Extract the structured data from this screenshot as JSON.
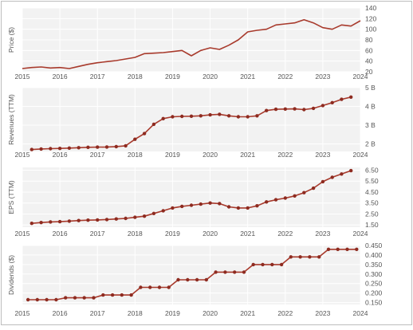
{
  "colors": {
    "line": "#a83a2c",
    "marker": "#8e2b20",
    "panel_bg": "#f2f2f2",
    "grid": "#ffffff",
    "axis_text": "#555555",
    "frame": "#bdbdbd"
  },
  "x_axis": {
    "ticks": [
      "2015",
      "2016",
      "2017",
      "2018",
      "2019",
      "2020",
      "2021",
      "2022",
      "2023",
      "2024"
    ]
  },
  "chart_data": [
    {
      "type": "line",
      "ylabel": "Price ($)",
      "ylim": [
        20,
        140
      ],
      "yticks": [
        "20",
        "40",
        "60",
        "80",
        "100",
        "120",
        "140"
      ],
      "xlim": [
        2015,
        2024
      ],
      "grid": true,
      "series": [
        {
          "x": [
            2015.0,
            2015.25,
            2015.5,
            2015.75,
            2016.0,
            2016.25,
            2016.5,
            2016.75,
            2017.0,
            2017.25,
            2017.5,
            2017.75,
            2018.0,
            2018.25,
            2018.5,
            2018.75,
            2019.0,
            2019.25,
            2019.5,
            2019.75,
            2020.0,
            2020.25,
            2020.5,
            2020.75,
            2021.0,
            2021.25,
            2021.5,
            2021.75,
            2022.0,
            2022.25,
            2022.5,
            2022.75,
            2023.0,
            2023.25,
            2023.5,
            2023.75,
            2024.0
          ],
          "y": [
            26,
            28,
            29,
            27,
            28,
            26,
            30,
            34,
            37,
            39,
            41,
            44,
            47,
            54,
            55,
            56,
            58,
            60,
            50,
            60,
            65,
            62,
            70,
            80,
            95,
            98,
            100,
            108,
            110,
            112,
            118,
            112,
            103,
            100,
            108,
            106,
            116
          ]
        }
      ]
    },
    {
      "type": "line",
      "ylabel": "Revenues (TTM)",
      "ylim": [
        1.6,
        5.0
      ],
      "yticks": [
        "2 B",
        "3 B",
        "4 B",
        "5 B"
      ],
      "xlim": [
        2015,
        2024
      ],
      "grid": true,
      "series": [
        {
          "x": [
            2015.25,
            2015.5,
            2015.75,
            2016.0,
            2016.25,
            2016.5,
            2016.75,
            2017.0,
            2017.25,
            2017.5,
            2017.75,
            2018.0,
            2018.25,
            2018.5,
            2018.75,
            2019.0,
            2019.25,
            2019.5,
            2019.75,
            2020.0,
            2020.25,
            2020.5,
            2020.75,
            2021.0,
            2021.25,
            2021.5,
            2021.75,
            2022.0,
            2022.25,
            2022.5,
            2022.75,
            2023.0,
            2023.25,
            2023.5,
            2023.75
          ],
          "y": [
            1.7,
            1.73,
            1.75,
            1.76,
            1.78,
            1.8,
            1.82,
            1.83,
            1.84,
            1.86,
            1.9,
            2.25,
            2.55,
            3.05,
            3.35,
            3.45,
            3.47,
            3.48,
            3.5,
            3.55,
            3.58,
            3.5,
            3.45,
            3.45,
            3.5,
            3.78,
            3.85,
            3.86,
            3.87,
            3.83,
            3.9,
            4.05,
            4.2,
            4.38,
            4.5
          ]
        }
      ]
    },
    {
      "type": "line",
      "ylabel": "EPS (TTM)",
      "ylim": [
        1.3,
        6.75
      ],
      "yticks": [
        "1.50",
        "2.50",
        "3.50",
        "4.50",
        "5.50",
        "6.50"
      ],
      "xlim": [
        2015,
        2024
      ],
      "grid": true,
      "series": [
        {
          "x": [
            2015.25,
            2015.5,
            2015.75,
            2016.0,
            2016.25,
            2016.5,
            2016.75,
            2017.0,
            2017.25,
            2017.5,
            2017.75,
            2018.0,
            2018.25,
            2018.5,
            2018.75,
            2019.0,
            2019.25,
            2019.5,
            2019.75,
            2020.0,
            2020.25,
            2020.5,
            2020.75,
            2021.0,
            2021.25,
            2021.5,
            2021.75,
            2022.0,
            2022.25,
            2022.5,
            2022.75,
            2023.0,
            2023.25,
            2023.5,
            2023.75
          ],
          "y": [
            1.65,
            1.72,
            1.78,
            1.8,
            1.85,
            1.9,
            1.94,
            1.96,
            2.0,
            2.05,
            2.1,
            2.2,
            2.3,
            2.55,
            2.8,
            3.05,
            3.2,
            3.3,
            3.4,
            3.5,
            3.45,
            3.15,
            3.05,
            3.05,
            3.25,
            3.6,
            3.8,
            3.95,
            4.15,
            4.45,
            4.85,
            5.45,
            5.85,
            6.15,
            6.45
          ]
        }
      ]
    },
    {
      "type": "line",
      "ylabel": "Dividends ($)",
      "ylim": [
        0.14,
        0.45
      ],
      "yticks": [
        "0.150",
        "0.200",
        "0.250",
        "0.300",
        "0.350",
        "0.400",
        "0.450"
      ],
      "xlim": [
        2015,
        2024
      ],
      "grid": true,
      "series": [
        {
          "x": [
            2015.15,
            2015.4,
            2015.65,
            2015.9,
            2016.15,
            2016.4,
            2016.65,
            2016.9,
            2017.15,
            2017.4,
            2017.65,
            2017.9,
            2018.15,
            2018.4,
            2018.65,
            2018.9,
            2019.15,
            2019.4,
            2019.65,
            2019.9,
            2020.15,
            2020.4,
            2020.65,
            2020.9,
            2021.15,
            2021.4,
            2021.65,
            2021.9,
            2022.15,
            2022.4,
            2022.65,
            2022.9,
            2023.15,
            2023.4,
            2023.65,
            2023.9
          ],
          "y": [
            0.165,
            0.165,
            0.165,
            0.165,
            0.175,
            0.175,
            0.175,
            0.175,
            0.19,
            0.19,
            0.19,
            0.19,
            0.23,
            0.23,
            0.23,
            0.23,
            0.27,
            0.27,
            0.27,
            0.27,
            0.31,
            0.31,
            0.31,
            0.31,
            0.35,
            0.35,
            0.35,
            0.35,
            0.39,
            0.39,
            0.39,
            0.39,
            0.43,
            0.43,
            0.43,
            0.43
          ]
        }
      ]
    }
  ]
}
